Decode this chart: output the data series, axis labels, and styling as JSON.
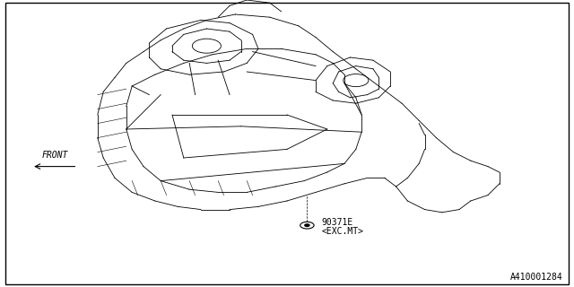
{
  "background_color": "#ffffff",
  "border_color": "#000000",
  "border_linewidth": 1.0,
  "front_label": "FRONT",
  "front_label_fontsize": 7,
  "part_label_1": "90371E",
  "part_label_2": "<EXC.MT>",
  "part_label_fontsize": 7,
  "footer_label": "A410001284",
  "footer_fontsize": 7,
  "line_color": "#000000",
  "annotation_fontsize": 7
}
